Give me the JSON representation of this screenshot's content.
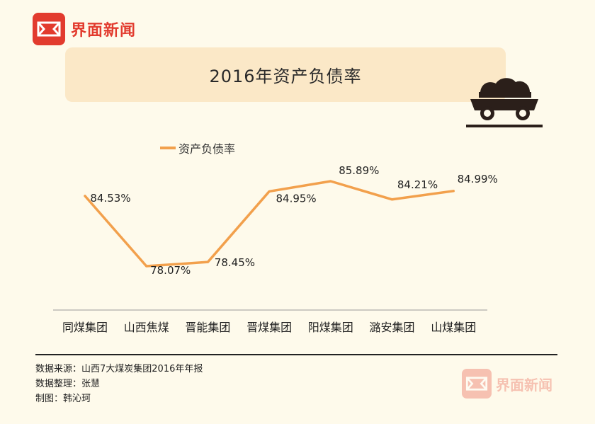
{
  "brand": {
    "name": "界面新闻",
    "color": "#e23b2e"
  },
  "chart_data": {
    "type": "line",
    "title": "2016年资产负债率",
    "categories": [
      "同煤集团",
      "山西焦煤",
      "晋能集团",
      "晋煤集团",
      "阳煤集团",
      "潞安集团",
      "山煤集团"
    ],
    "series": [
      {
        "name": "资产负债率",
        "values": [
          84.53,
          78.07,
          78.45,
          84.95,
          85.89,
          84.21,
          84.99
        ],
        "color": "#f2a04c"
      }
    ],
    "value_labels": [
      "84.53%",
      "78.07%",
      "78.45%",
      "84.95%",
      "85.89%",
      "84.21%",
      "84.99%"
    ],
    "legend_position": "top-left",
    "grid": false
  },
  "source": {
    "data_source": "数据来源：山西7大煤炭集团2016年年报",
    "data_compiled": "数据整理：张慧",
    "made_by": "制图：韩沁珂"
  },
  "watermark": {
    "name": "界面新闻"
  }
}
